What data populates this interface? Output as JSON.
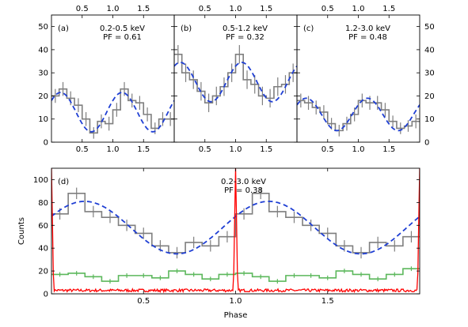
{
  "chart_data": [
    {
      "id": "a",
      "type": "line",
      "panel_label": "(a)",
      "energy": "0.2-0.5 keV",
      "pf": "PF = 0.61",
      "xlim": [
        0,
        2
      ],
      "ylim": [
        0,
        55
      ],
      "yticks": [
        0,
        10,
        20,
        30,
        40,
        50
      ],
      "xticks": [
        0.5,
        1.0,
        1.5
      ],
      "xtick_labels": [
        "0.5",
        "1.0",
        "1.5"
      ],
      "series": [
        {
          "kind": "histogram",
          "color": "#7f7f7f",
          "values": [
            20,
            23,
            19,
            16,
            10,
            4,
            9,
            8,
            14,
            23,
            18,
            17,
            12,
            6,
            10,
            10
          ],
          "errors": [
            3,
            3,
            3,
            3,
            3,
            2.5,
            3,
            3,
            3,
            3,
            3,
            3,
            3,
            2.5,
            3,
            3
          ]
        },
        {
          "kind": "model",
          "color": "#1f3fd4",
          "mean": 13,
          "amp": 8.5,
          "peak_phase": 0.15,
          "harmonic": 2
        }
      ]
    },
    {
      "id": "b",
      "type": "line",
      "panel_label": "(b)",
      "energy": "0.5-1.2 keV",
      "pf": "PF = 0.32",
      "xlim": [
        0,
        2
      ],
      "ylim": [
        0,
        55
      ],
      "yticks": [
        0,
        10,
        20,
        30,
        40,
        50
      ],
      "xticks": [
        0.5,
        1.0,
        1.5
      ],
      "xtick_labels": [
        "0.5",
        "1.0",
        "1.5"
      ],
      "series": [
        {
          "kind": "histogram",
          "color": "#7f7f7f",
          "values": [
            38,
            30,
            27,
            22,
            17,
            20,
            24,
            30,
            38,
            27,
            25,
            20,
            19,
            24,
            25,
            30
          ],
          "errors": [
            4,
            4,
            4,
            4,
            4,
            4,
            4,
            4,
            4,
            4,
            4,
            4,
            4,
            4,
            4,
            4
          ]
        },
        {
          "kind": "model",
          "color": "#1f3fd4",
          "mean": 26,
          "amp": 8.5,
          "peak_phase": 0.1,
          "harmonic": 2
        }
      ]
    },
    {
      "id": "c",
      "type": "line",
      "panel_label": "(c)",
      "energy": "1.2-3.0 keV",
      "pf": "PF = 0.48",
      "xlim": [
        0,
        2
      ],
      "ylim": [
        0,
        55
      ],
      "yticks": [
        0,
        10,
        20,
        30,
        40,
        50
      ],
      "xticks": [
        0.5,
        1.0,
        1.5
      ],
      "xtick_labels": [
        "0.5",
        "1.0",
        "1.5"
      ],
      "series": [
        {
          "kind": "histogram",
          "color": "#7f7f7f",
          "values": [
            18,
            17,
            15,
            13,
            8,
            5,
            8,
            12,
            18,
            17,
            17,
            14,
            9,
            6,
            7,
            9
          ],
          "errors": [
            3,
            3,
            3,
            3,
            2.5,
            2.5,
            3,
            3,
            3,
            3,
            3,
            3,
            2.5,
            2.5,
            2.5,
            3
          ]
        },
        {
          "kind": "model",
          "color": "#1f3fd4",
          "mean": 12,
          "amp": 7,
          "peak_phase": 0.15,
          "harmonic": 2
        }
      ]
    },
    {
      "id": "d",
      "type": "line",
      "panel_label": "(d)",
      "energy": "0.2-3.0 keV",
      "pf": "PF = 0.38",
      "xlabel": "Phase",
      "ylabel": "Counts",
      "xlim": [
        0,
        2
      ],
      "ylim": [
        0,
        110
      ],
      "yticks": [
        0,
        20,
        40,
        60,
        80,
        100
      ],
      "xticks": [
        0.5,
        1.0,
        1.5
      ],
      "xtick_labels": [
        "0.5",
        "1.0",
        "1.5"
      ],
      "series": [
        {
          "kind": "histogram",
          "color": "#7f7f7f",
          "values": [
            70,
            88,
            72,
            67,
            60,
            53,
            42,
            36,
            45,
            42,
            50,
            70,
            88,
            72,
            67,
            60,
            53,
            42,
            36,
            45,
            42,
            50
          ],
          "errors": [
            5,
            5,
            5,
            5,
            5,
            5,
            5,
            5,
            5,
            5,
            5,
            5,
            5,
            5,
            5,
            5,
            5,
            5,
            5,
            5,
            5,
            5
          ]
        },
        {
          "kind": "model",
          "color": "#1f3fd4",
          "mean": 58,
          "amp": 23,
          "peak_phase": 0.18,
          "harmonic": 2
        },
        {
          "kind": "histogram",
          "color": "#5cb85c",
          "values": [
            17,
            18,
            15,
            11,
            16,
            16,
            14,
            20,
            17,
            13,
            17,
            18,
            15,
            11,
            16,
            16,
            14,
            20,
            17,
            13,
            17,
            22
          ],
          "errors": [
            2,
            2,
            2,
            2,
            2,
            2,
            2,
            2,
            2,
            2,
            2,
            2,
            2,
            2,
            2,
            2,
            2,
            2,
            2,
            2,
            2,
            2
          ]
        },
        {
          "kind": "noise",
          "color": "#ff0000",
          "baseline": 3,
          "spikes": [
            0.0,
            1.0,
            2.0
          ],
          "spike_height": 110
        }
      ]
    }
  ]
}
